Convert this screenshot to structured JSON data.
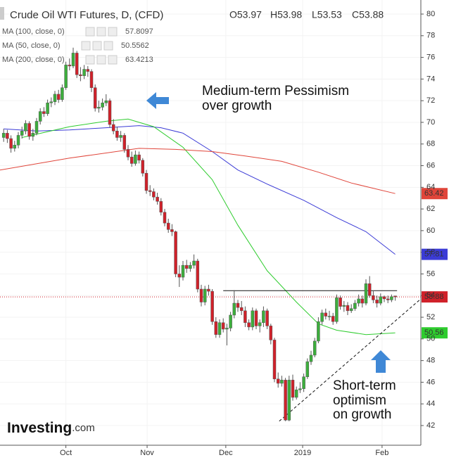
{
  "chart_data": {
    "type": "candlestick",
    "title": "Crude Oil WTI Futures, D, (CFD)",
    "ohlc_labels": [
      "O53.97",
      "H53.98",
      "L53.53",
      "C53.88"
    ],
    "up_color": "#3cae3c",
    "down_color": "#d0212a",
    "xlim": [
      -18,
      97
    ],
    "xticks": [
      {
        "value": 0,
        "label": "Oct"
      },
      {
        "value": 22.2,
        "label": "Nov"
      },
      {
        "value": 43.7,
        "label": "Dec"
      },
      {
        "value": 64.7,
        "label": "2019"
      },
      {
        "value": 86.4,
        "label": "Feb"
      }
    ],
    "ylim": [
      42,
      80
    ],
    "yticks": [
      42,
      44,
      46,
      48,
      50,
      52,
      54,
      56,
      58,
      60,
      62,
      64,
      66,
      68,
      70,
      72,
      74,
      76,
      78,
      80
    ],
    "grid": true,
    "x": [
      -17,
      -16,
      -15,
      -14,
      -13,
      -12,
      -11,
      -10,
      -9,
      -8,
      -7,
      -6,
      -5,
      -4,
      -3,
      -2,
      -1,
      0,
      1,
      2,
      3,
      4,
      5,
      6,
      7,
      8,
      9,
      10,
      11,
      12,
      13,
      14,
      15,
      16,
      17,
      18,
      19,
      20,
      21,
      22,
      23,
      24,
      25,
      26,
      27,
      28,
      29,
      30,
      31,
      32,
      33,
      34,
      35,
      36,
      37,
      38,
      39,
      40,
      41,
      42,
      43,
      44,
      45,
      46,
      47,
      48,
      49,
      50,
      51,
      52,
      53,
      54,
      55,
      56,
      57,
      58,
      59,
      60,
      61,
      62,
      63,
      64,
      65,
      66,
      67,
      68,
      69,
      70,
      71,
      72,
      73,
      74,
      75,
      76,
      77,
      78,
      79,
      80,
      81,
      82,
      83,
      84,
      85,
      86,
      87,
      88,
      89,
      90
    ],
    "candles": [
      [
        68.6,
        69.4,
        68.2,
        69.0
      ],
      [
        69.0,
        69.3,
        68.1,
        68.5
      ],
      [
        68.5,
        68.8,
        67.2,
        67.6
      ],
      [
        67.6,
        68.3,
        67.3,
        67.9
      ],
      [
        67.9,
        69.1,
        67.6,
        68.8
      ],
      [
        68.8,
        69.6,
        68.5,
        69.2
      ],
      [
        69.2,
        70.2,
        68.9,
        69.9
      ],
      [
        69.9,
        70.1,
        68.4,
        68.7
      ],
      [
        68.7,
        69.4,
        68.3,
        69.0
      ],
      [
        69.0,
        70.4,
        68.8,
        70.1
      ],
      [
        70.1,
        71.3,
        69.8,
        71.0
      ],
      [
        71.0,
        71.4,
        70.5,
        70.8
      ],
      [
        70.8,
        72.1,
        70.6,
        71.8
      ],
      [
        71.8,
        72.3,
        71.4,
        71.9
      ],
      [
        71.9,
        72.9,
        71.6,
        72.6
      ],
      [
        72.6,
        73.0,
        71.8,
        72.1
      ],
      [
        72.1,
        73.5,
        71.9,
        73.2
      ],
      [
        73.2,
        75.6,
        73.0,
        75.3
      ],
      [
        75.3,
        75.9,
        74.8,
        75.2
      ],
      [
        75.2,
        76.9,
        75.0,
        76.4
      ],
      [
        76.4,
        76.6,
        74.1,
        74.4
      ],
      [
        74.4,
        75.1,
        73.8,
        74.3
      ],
      [
        74.3,
        75.3,
        74.0,
        74.9
      ],
      [
        74.9,
        75.2,
        74.2,
        74.7
      ],
      [
        74.7,
        74.9,
        72.8,
        73.2
      ],
      [
        73.2,
        73.5,
        71.0,
        71.3
      ],
      [
        71.3,
        72.0,
        70.9,
        71.4
      ],
      [
        71.4,
        72.2,
        71.1,
        71.8
      ],
      [
        71.8,
        72.6,
        71.5,
        72.0
      ],
      [
        72.0,
        72.2,
        69.5,
        69.8
      ],
      [
        69.8,
        70.3,
        68.9,
        69.2
      ],
      [
        69.2,
        69.6,
        68.3,
        68.6
      ],
      [
        68.6,
        69.2,
        68.2,
        68.8
      ],
      [
        68.8,
        69.0,
        67.2,
        67.5
      ],
      [
        67.5,
        67.9,
        66.5,
        66.8
      ],
      [
        66.8,
        67.3,
        65.9,
        66.2
      ],
      [
        66.2,
        67.4,
        66.0,
        67.0
      ],
      [
        67.0,
        67.3,
        66.2,
        66.5
      ],
      [
        66.5,
        66.7,
        65.0,
        65.3
      ],
      [
        65.3,
        65.6,
        63.4,
        63.7
      ],
      [
        63.7,
        64.2,
        63.2,
        63.6
      ],
      [
        63.6,
        63.9,
        62.8,
        63.1
      ],
      [
        63.1,
        63.5,
        62.4,
        62.7
      ],
      [
        62.7,
        63.0,
        61.4,
        61.7
      ],
      [
        61.7,
        62.0,
        60.4,
        60.7
      ],
      [
        60.7,
        61.1,
        59.8,
        60.1
      ],
      [
        60.1,
        60.6,
        59.5,
        59.9
      ],
      [
        59.9,
        60.0,
        55.7,
        56.0
      ],
      [
        56.0,
        56.8,
        54.8,
        55.7
      ],
      [
        55.7,
        57.2,
        55.4,
        56.8
      ],
      [
        56.8,
        57.3,
        56.1,
        56.5
      ],
      [
        56.5,
        57.1,
        56.2,
        56.8
      ],
      [
        56.8,
        57.8,
        56.5,
        57.2
      ],
      [
        57.2,
        57.4,
        54.3,
        54.6
      ],
      [
        54.6,
        55.0,
        53.0,
        53.4
      ],
      [
        53.4,
        54.9,
        53.1,
        54.6
      ],
      [
        54.6,
        55.0,
        54.0,
        54.4
      ],
      [
        54.4,
        54.6,
        51.3,
        51.6
      ],
      [
        51.6,
        52.0,
        50.1,
        50.4
      ],
      [
        50.4,
        51.8,
        50.1,
        51.5
      ],
      [
        51.5,
        51.9,
        50.6,
        50.9
      ],
      [
        50.9,
        51.4,
        49.4,
        51.0
      ],
      [
        51.0,
        52.5,
        50.7,
        52.2
      ],
      [
        52.2,
        54.5,
        51.9,
        53.3
      ],
      [
        53.3,
        53.6,
        52.5,
        52.9
      ],
      [
        52.9,
        53.5,
        52.2,
        52.6
      ],
      [
        52.6,
        53.0,
        51.1,
        51.5
      ],
      [
        51.5,
        51.8,
        50.8,
        51.1
      ],
      [
        51.1,
        52.9,
        50.8,
        52.6
      ],
      [
        52.6,
        52.8,
        50.9,
        51.2
      ],
      [
        51.2,
        51.8,
        50.6,
        51.5
      ],
      [
        51.5,
        53.0,
        51.1,
        52.6
      ],
      [
        52.6,
        52.8,
        50.9,
        51.2
      ],
      [
        51.2,
        51.4,
        49.5,
        49.9
      ],
      [
        49.9,
        50.1,
        46.0,
        46.3
      ],
      [
        46.3,
        46.9,
        45.5,
        45.9
      ],
      [
        45.9,
        46.6,
        45.6,
        46.2
      ],
      [
        46.2,
        46.4,
        42.4,
        42.5
      ],
      [
        42.5,
        46.6,
        42.4,
        46.2
      ],
      [
        46.2,
        46.7,
        44.3,
        44.6
      ],
      [
        44.6,
        45.6,
        44.4,
        45.3
      ],
      [
        45.3,
        46.0,
        45.0,
        45.4
      ],
      [
        45.4,
        46.8,
        45.1,
        46.5
      ],
      [
        46.5,
        48.2,
        46.3,
        47.9
      ],
      [
        47.9,
        48.9,
        47.6,
        48.5
      ],
      [
        48.5,
        50.1,
        48.3,
        49.8
      ],
      [
        49.8,
        52.0,
        49.6,
        51.6
      ],
      [
        51.6,
        52.7,
        51.3,
        52.4
      ],
      [
        52.4,
        52.8,
        51.8,
        52.1
      ],
      [
        52.1,
        52.6,
        51.7,
        52.1
      ],
      [
        52.1,
        52.4,
        51.3,
        51.6
      ],
      [
        51.6,
        54.1,
        51.4,
        53.8
      ],
      [
        53.8,
        54.0,
        52.7,
        53.0
      ],
      [
        53.0,
        53.5,
        52.5,
        53.1
      ],
      [
        53.1,
        53.4,
        52.2,
        52.6
      ],
      [
        52.6,
        53.2,
        52.4,
        52.8
      ],
      [
        52.8,
        53.6,
        52.6,
        53.3
      ],
      [
        53.3,
        54.1,
        53.0,
        53.7
      ],
      [
        53.7,
        54.0,
        52.9,
        53.3
      ],
      [
        53.3,
        55.5,
        53.1,
        55.1
      ],
      [
        55.1,
        55.8,
        53.8,
        54.0
      ],
      [
        54.0,
        54.4,
        53.3,
        53.6
      ],
      [
        53.6,
        54.0,
        52.9,
        53.3
      ],
      [
        53.3,
        54.2,
        53.1,
        53.9
      ],
      [
        53.9,
        54.0,
        53.4,
        53.7
      ],
      [
        53.7,
        54.0,
        53.3,
        53.6
      ],
      [
        53.6,
        54.1,
        53.4,
        53.9
      ],
      [
        53.97,
        53.98,
        53.53,
        53.88
      ]
    ],
    "series": [
      {
        "name": "MA (100, close, 0)",
        "legend_value": "57.8097",
        "color": "#3b3bd6",
        "badge": 57.81,
        "x": [
          -17,
          -8,
          1,
          11,
          20,
          26,
          32,
          40,
          47,
          55,
          65,
          74,
          82,
          90
        ],
        "values": [
          69.4,
          69.2,
          69.3,
          69.5,
          69.7,
          69.5,
          69.0,
          67.3,
          65.6,
          64.3,
          62.8,
          61.2,
          59.9,
          57.81
        ]
      },
      {
        "name": "MA (50, close, 0)",
        "legend_value": "50.5562",
        "color": "#2ecc2e",
        "badge": 50.56,
        "x": [
          -12,
          1,
          11,
          17,
          24,
          32,
          40,
          47,
          55,
          63,
          69,
          74,
          82,
          90
        ],
        "values": [
          68.6,
          69.6,
          70.1,
          70.3,
          69.6,
          67.7,
          64.7,
          60.5,
          56.3,
          53.4,
          51.4,
          50.8,
          50.4,
          50.56
        ]
      },
      {
        "name": "MA (200, close, 0)",
        "legend_value": "63.4213",
        "color": "#e0453a",
        "badge": 63.42,
        "x": [
          -18,
          1,
          20,
          30,
          40,
          49,
          59,
          69,
          78,
          90
        ],
        "values": [
          65.6,
          66.7,
          67.6,
          67.5,
          67.3,
          66.9,
          66.4,
          65.4,
          64.4,
          63.42
        ]
      }
    ],
    "last_price": 53.88,
    "resistance": {
      "x": [
        43,
        90.5
      ],
      "values": [
        54.45,
        54.45
      ]
    },
    "trendline": {
      "x": [
        58.3,
        97
      ],
      "values": [
        42.4,
        53.7
      ]
    },
    "annotations": [
      "Medium-term Pessimism",
      "over growth",
      "Short-term",
      "optimism",
      "on growth"
    ],
    "logo": "Investing",
    "logo_suffix": ".com"
  }
}
